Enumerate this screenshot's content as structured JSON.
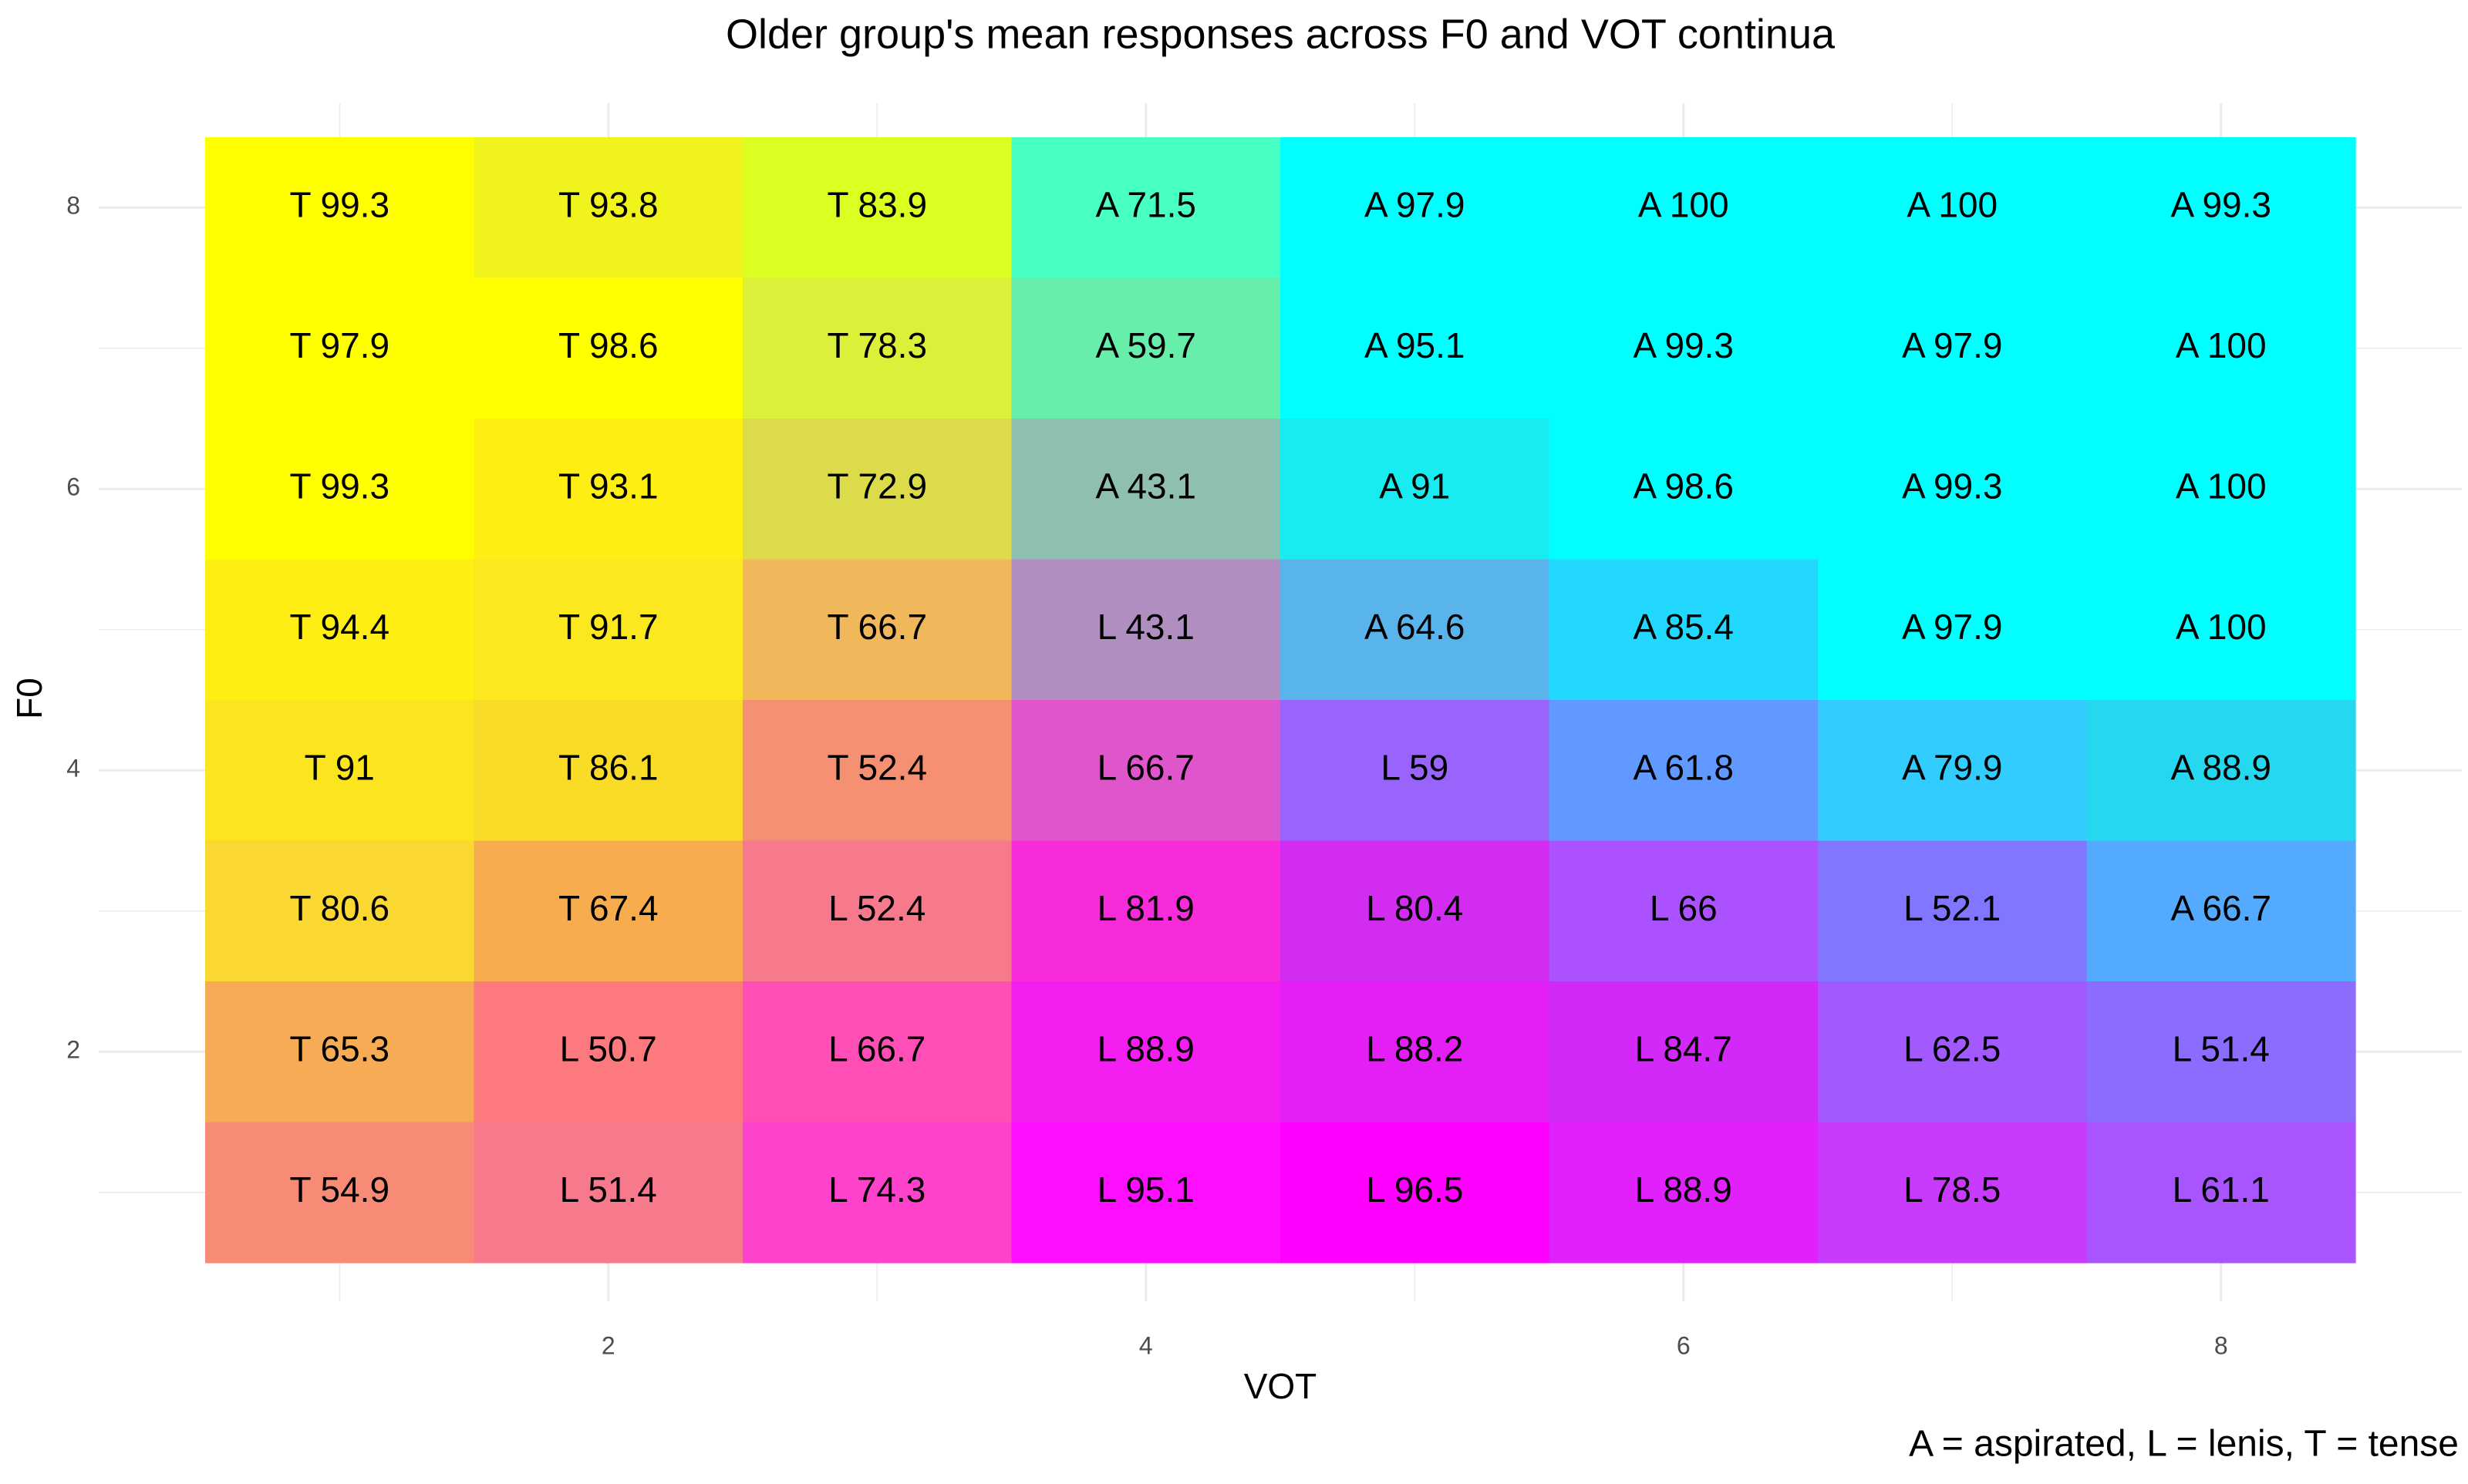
{
  "chart_data": {
    "type": "heatmap",
    "title": "Older group's mean responses across F0 and VOT continua",
    "xlabel": "VOT",
    "ylabel": "F0",
    "caption": "A = aspirated, L = lenis, T = tense",
    "x": [
      1,
      2,
      3,
      4,
      5,
      6,
      7,
      8
    ],
    "y": [
      1,
      2,
      3,
      4,
      5,
      6,
      7,
      8
    ],
    "xlim": [
      0.5,
      8.5
    ],
    "ylim": [
      0.5,
      8.5
    ],
    "x_ticks": [
      2,
      4,
      6,
      8
    ],
    "y_ticks": [
      2,
      4,
      6,
      8
    ],
    "x_tick_labels": [
      "2",
      "4",
      "6",
      "8"
    ],
    "y_tick_labels": [
      "2",
      "4",
      "6",
      "8"
    ],
    "grid": true,
    "legend": "none",
    "category_colors": {
      "T": "#ffff00",
      "A": "#00ffff",
      "L": "#ff00ff"
    },
    "cells": [
      {
        "y": 8,
        "labels": [
          "T 99.3",
          "T 93.8",
          "T 83.9",
          "A 71.5",
          "A 97.9",
          "A 100",
          "A 100",
          "A 99.3"
        ]
      },
      {
        "y": 7,
        "labels": [
          "T 97.9",
          "T 98.6",
          "T 78.3",
          "A 59.7",
          "A 95.1",
          "A 99.3",
          "A 97.9",
          "A 100"
        ]
      },
      {
        "y": 6,
        "labels": [
          "T 99.3",
          "T 93.1",
          "T 72.9",
          "A 43.1",
          "A 91",
          "A 98.6",
          "A 99.3",
          "A 100"
        ]
      },
      {
        "y": 5,
        "labels": [
          "T 94.4",
          "T 91.7",
          "T 66.7",
          "L 43.1",
          "A 64.6",
          "A 85.4",
          "A 97.9",
          "A 100"
        ]
      },
      {
        "y": 4,
        "labels": [
          "T 91",
          "T 86.1",
          "T 52.4",
          "L 66.7",
          "L 59",
          "A 61.8",
          "A 79.9",
          "A 88.9"
        ]
      },
      {
        "y": 3,
        "labels": [
          "T 80.6",
          "T 67.4",
          "L 52.4",
          "L 81.9",
          "L 80.4",
          "L 66",
          "L 52.1",
          "A 66.7"
        ]
      },
      {
        "y": 2,
        "labels": [
          "T 65.3",
          "L 50.7",
          "L 66.7",
          "L 88.9",
          "L 88.2",
          "L 84.7",
          "L 62.5",
          "L 51.4"
        ]
      },
      {
        "y": 1,
        "labels": [
          "T 54.9",
          "L 51.4",
          "L 74.3",
          "L 95.1",
          "L 96.5",
          "L 88.9",
          "L 78.5",
          "L 61.1"
        ]
      }
    ],
    "fills": [
      {
        "y": 8,
        "colors": [
          "#ffff00",
          "#f0f41c",
          "#dcff22",
          "#48ffc4",
          "#00ffff",
          "#00ffff",
          "#00ffff",
          "#00ffff"
        ]
      },
      {
        "y": 7,
        "colors": [
          "#ffff00",
          "#ffff00",
          "#dcf03a",
          "#66eeaa",
          "#00ffff",
          "#00ffff",
          "#00ffff",
          "#00ffff"
        ]
      },
      {
        "y": 6,
        "colors": [
          "#ffff00",
          "#ffee14",
          "#dcdc4a",
          "#8fbfb0",
          "#18ecf0",
          "#00ffff",
          "#00ffff",
          "#00ffff"
        ]
      },
      {
        "y": 5,
        "colors": [
          "#ffee14",
          "#fbe81e",
          "#f0b85a",
          "#b08fc0",
          "#5ab4ec",
          "#22d8ff",
          "#00ffff",
          "#00ffff"
        ]
      },
      {
        "y": 4,
        "colors": [
          "#fbe51f",
          "#f8dc28",
          "#f59072",
          "#df55cc",
          "#9864fc",
          "#6099ff",
          "#32ccff",
          "#25d8f0"
        ]
      },
      {
        "y": 3,
        "colors": [
          "#fbd831",
          "#f7ad4d",
          "#f77a8c",
          "#f82bda",
          "#d22cf0",
          "#ab51ff",
          "#8076ff",
          "#54aaff"
        ]
      },
      {
        "y": 2,
        "colors": [
          "#f7ab55",
          "#fc7a7d",
          "#ff4fb7",
          "#f51ef0",
          "#e31ff5",
          "#d228f8",
          "#a25aff",
          "#8c6cff"
        ]
      },
      {
        "y": 1,
        "colors": [
          "#f88b75",
          "#f77a8c",
          "#ff42cc",
          "#ff0fff",
          "#ff00ff",
          "#e121fc",
          "#c83afc",
          "#a855ff"
        ]
      }
    ]
  }
}
